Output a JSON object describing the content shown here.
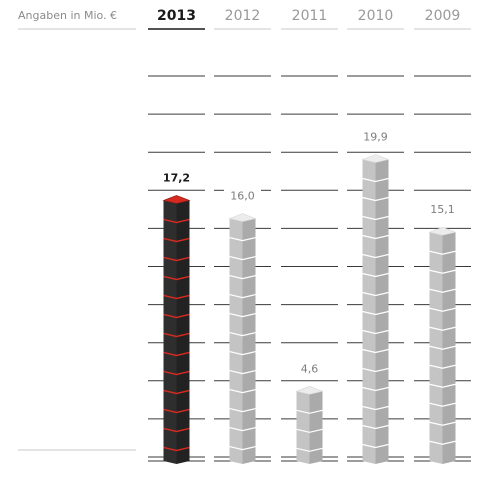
{
  "chart_data": {
    "type": "bar",
    "unit_label": "Angaben in Mio. €",
    "categories": [
      "2013",
      "2012",
      "2011",
      "2010",
      "2009"
    ],
    "value_labels": [
      "17,2",
      "16,0",
      "4,6",
      "19,9",
      "15,1"
    ],
    "values": [
      17.2,
      16.0,
      4.6,
      19.9,
      15.1
    ],
    "highlight_index": 0,
    "ylim": [
      0,
      20
    ],
    "grid": true,
    "colors": {
      "highlight_body": "#2e2e2e",
      "highlight_top": "#d42a20",
      "highlight_seam": "#d42a20",
      "body": "#c4c4c4",
      "body_shade": "#aaaaaa",
      "top": "#ececec",
      "grid": "#3a3a3a",
      "text_muted": "#8a8a8a"
    }
  }
}
